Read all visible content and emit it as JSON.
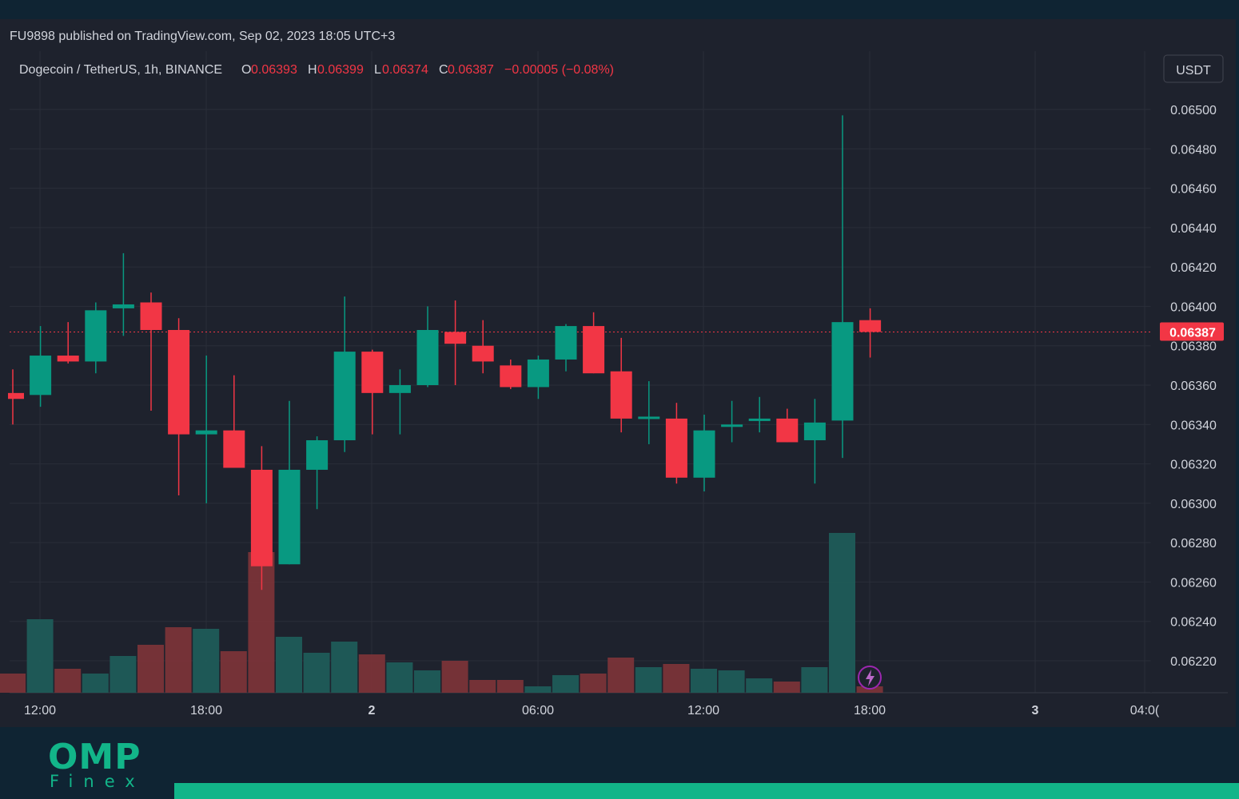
{
  "header": {
    "published_text": "FU9898 published on TradingView.com, Sep 02, 2023 18:05 UTC+3"
  },
  "legend": {
    "symbol": "Dogecoin / TetherUS, 1h, BINANCE",
    "open_label": "O",
    "open_value": "0.06393",
    "high_label": "H",
    "high_value": "0.06399",
    "low_label": "L",
    "low_value": "0.06374",
    "close_label": "C",
    "close_value": "0.06387",
    "change": "−0.00005 (−0.08%)"
  },
  "currency_button": "USDT",
  "last_price_label": "0.06387",
  "logo": {
    "top": "OMP",
    "bottom": "Finex"
  },
  "colors": {
    "up": "#089981",
    "down": "#f23645",
    "background": "#1e222d",
    "text": "#d1d4dc",
    "grid": "#2a2e39",
    "brand": "#12b589"
  },
  "icons": {
    "event_marker": "lightning-icon"
  },
  "chart_data": {
    "type": "candlestick",
    "y_ticks": [
      "0.06220",
      "0.06240",
      "0.06260",
      "0.06280",
      "0.06300",
      "0.06320",
      "0.06340",
      "0.06360",
      "0.06380",
      "0.06400",
      "0.06420",
      "0.06440",
      "0.06460",
      "0.06480",
      "0.06500"
    ],
    "ylim": [
      0.06204,
      0.06515
    ],
    "x_ticks": [
      "12:00",
      "18:00",
      "2",
      "06:00",
      "12:00",
      "18:00",
      "3",
      "04:0("
    ],
    "grid": true,
    "last_price": 0.06387,
    "candles": [
      {
        "time": "Sep 1 11:00",
        "o": 0.06356,
        "h": 0.06368,
        "l": 0.0634,
        "c": 0.06353
      },
      {
        "time": "Sep 1 12:00",
        "o": 0.06355,
        "h": 0.0639,
        "l": 0.06349,
        "c": 0.06375
      },
      {
        "time": "Sep 1 13:00",
        "o": 0.06375,
        "h": 0.06392,
        "l": 0.06371,
        "c": 0.06372
      },
      {
        "time": "Sep 1 14:00",
        "o": 0.06372,
        "h": 0.06402,
        "l": 0.06366,
        "c": 0.06398
      },
      {
        "time": "Sep 1 15:00",
        "o": 0.06399,
        "h": 0.06427,
        "l": 0.06385,
        "c": 0.06401
      },
      {
        "time": "Sep 1 16:00",
        "o": 0.06402,
        "h": 0.06407,
        "l": 0.06347,
        "c": 0.06388
      },
      {
        "time": "Sep 1 17:00",
        "o": 0.06388,
        "h": 0.06394,
        "l": 0.06304,
        "c": 0.06335
      },
      {
        "time": "Sep 1 18:00",
        "o": 0.06335,
        "h": 0.06375,
        "l": 0.063,
        "c": 0.06337
      },
      {
        "time": "Sep 1 19:00",
        "o": 0.06337,
        "h": 0.06365,
        "l": 0.06318,
        "c": 0.06318
      },
      {
        "time": "Sep 1 20:00",
        "o": 0.06317,
        "h": 0.06329,
        "l": 0.06256,
        "c": 0.06268
      },
      {
        "time": "Sep 1 21:00",
        "o": 0.06269,
        "h": 0.06352,
        "l": 0.06269,
        "c": 0.06317
      },
      {
        "time": "Sep 1 22:00",
        "o": 0.06317,
        "h": 0.06334,
        "l": 0.06297,
        "c": 0.06332
      },
      {
        "time": "Sep 1 23:00",
        "o": 0.06332,
        "h": 0.06405,
        "l": 0.06326,
        "c": 0.06377
      },
      {
        "time": "Sep 2 00:00",
        "o": 0.06377,
        "h": 0.06378,
        "l": 0.06335,
        "c": 0.06356
      },
      {
        "time": "Sep 2 01:00",
        "o": 0.06356,
        "h": 0.06368,
        "l": 0.06335,
        "c": 0.0636
      },
      {
        "time": "Sep 2 02:00",
        "o": 0.0636,
        "h": 0.064,
        "l": 0.06359,
        "c": 0.06388
      },
      {
        "time": "Sep 2 03:00",
        "o": 0.06387,
        "h": 0.06403,
        "l": 0.0636,
        "c": 0.06381
      },
      {
        "time": "Sep 2 04:00",
        "o": 0.0638,
        "h": 0.06393,
        "l": 0.06366,
        "c": 0.06372
      },
      {
        "time": "Sep 2 05:00",
        "o": 0.0637,
        "h": 0.06373,
        "l": 0.06358,
        "c": 0.06359
      },
      {
        "time": "Sep 2 06:00",
        "o": 0.06359,
        "h": 0.06375,
        "l": 0.06353,
        "c": 0.06373
      },
      {
        "time": "Sep 2 07:00",
        "o": 0.06373,
        "h": 0.06391,
        "l": 0.06367,
        "c": 0.0639
      },
      {
        "time": "Sep 2 08:00",
        "o": 0.0639,
        "h": 0.06397,
        "l": 0.06366,
        "c": 0.06366
      },
      {
        "time": "Sep 2 09:00",
        "o": 0.06367,
        "h": 0.06384,
        "l": 0.06336,
        "c": 0.06343
      },
      {
        "time": "Sep 2 10:00",
        "o": 0.06344,
        "h": 0.06362,
        "l": 0.0633,
        "c": 0.06344
      },
      {
        "time": "Sep 2 11:00",
        "o": 0.06343,
        "h": 0.06351,
        "l": 0.0631,
        "c": 0.06313
      },
      {
        "time": "Sep 2 12:00",
        "o": 0.06313,
        "h": 0.06345,
        "l": 0.06306,
        "c": 0.06337
      },
      {
        "time": "Sep 2 13:00",
        "o": 0.06339,
        "h": 0.06352,
        "l": 0.06331,
        "c": 0.0634
      },
      {
        "time": "Sep 2 14:00",
        "o": 0.06342,
        "h": 0.06354,
        "l": 0.06336,
        "c": 0.06343
      },
      {
        "time": "Sep 2 15:00",
        "o": 0.06343,
        "h": 0.06348,
        "l": 0.06331,
        "c": 0.06331
      },
      {
        "time": "Sep 2 16:00",
        "o": 0.06332,
        "h": 0.06353,
        "l": 0.0631,
        "c": 0.06341
      },
      {
        "time": "Sep 2 17:00",
        "o": 0.06342,
        "h": 0.06497,
        "l": 0.06323,
        "c": 0.06392
      },
      {
        "time": "Sep 2 18:00",
        "o": 0.06393,
        "h": 0.06399,
        "l": 0.06374,
        "c": 0.06387
      }
    ],
    "volume_relative": [
      0.12,
      0.46,
      0.15,
      0.12,
      0.23,
      0.3,
      0.41,
      0.4,
      0.26,
      0.88,
      0.35,
      0.25,
      0.32,
      0.24,
      0.19,
      0.14,
      0.2,
      0.08,
      0.08,
      0.04,
      0.11,
      0.12,
      0.22,
      0.16,
      0.18,
      0.15,
      0.14,
      0.09,
      0.07,
      0.16,
      1.0,
      0.04
    ]
  }
}
